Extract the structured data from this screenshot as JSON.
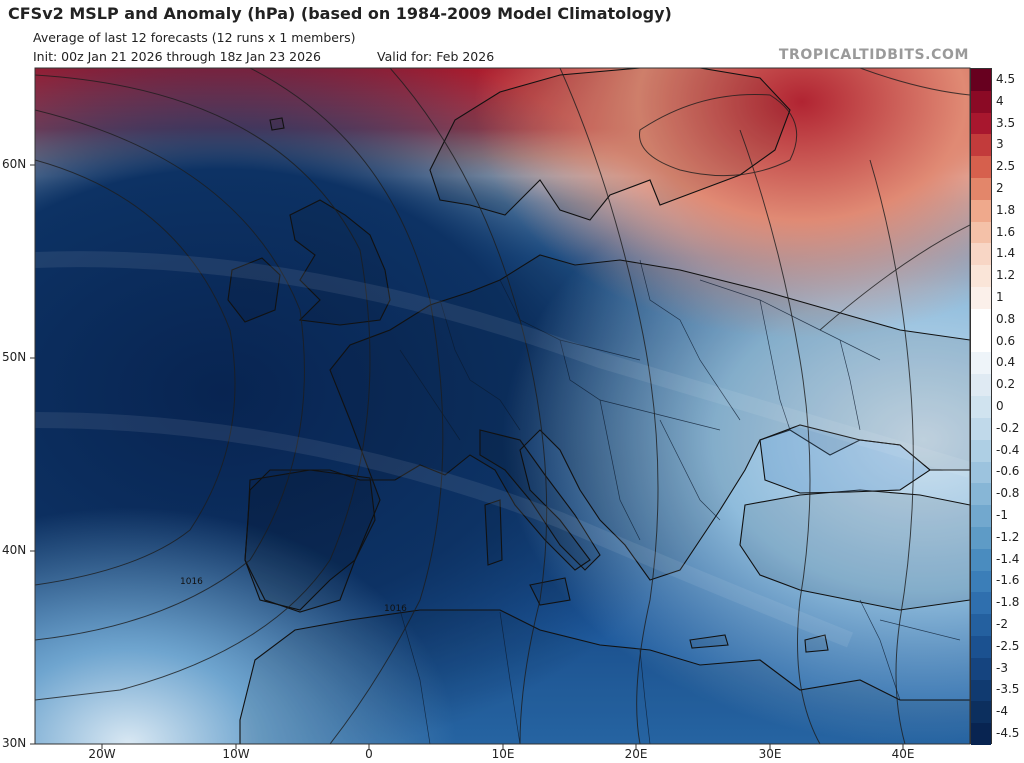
{
  "header": {
    "title": "CFSv2 MSLP and Anomaly (hPa) (based on 1984-2009 Model Climatology)",
    "subtitle": "Average of last 12 forecasts (12 runs x 1 members)",
    "init": "Init: 00z Jan 21 2026 through 18z Jan 23 2026",
    "valid": "Valid for: Feb 2026",
    "brand": "TROPICALTIDBITS.COM"
  },
  "map": {
    "lat_labels": [
      "60N",
      "50N",
      "40N",
      "30N"
    ],
    "lon_labels": [
      "20W",
      "10W",
      "0",
      "10E",
      "20E",
      "30E",
      "40E"
    ],
    "contour_labels": [
      "1016",
      "1016"
    ],
    "extent": {
      "lon_min": -25,
      "lon_max": 45,
      "lat_min": 30,
      "lat_max": 65
    }
  },
  "colorbar": {
    "labels": [
      "4.5",
      "4",
      "3.5",
      "3",
      "2.5",
      "2",
      "1.8",
      "1.6",
      "1.4",
      "1.2",
      "1",
      "0.8",
      "0.6",
      "0.4",
      "0.2",
      "0",
      "-0.2",
      "-0.4",
      "-0.6",
      "-0.8",
      "-1",
      "-1.2",
      "-1.4",
      "-1.6",
      "-1.8",
      "-2",
      "-2.5",
      "-3",
      "-3.5",
      "-4",
      "-4.5"
    ],
    "colors": [
      "#67001f",
      "#8b0a25",
      "#a8172e",
      "#c23b3b",
      "#d6604d",
      "#e3866a",
      "#efa98c",
      "#f4c1a8",
      "#f8d6c5",
      "#fae5d8",
      "#fbf0ea",
      "#ffffff",
      "#ffffff",
      "#eef4f9",
      "#dfeaf3",
      "#d0e3ef",
      "#c0d9ea",
      "#aecfe4",
      "#9cc3de",
      "#87b6d6",
      "#72a8ce",
      "#5e9bc6",
      "#4a8cbf",
      "#3b7eb8",
      "#2f6fae",
      "#24609f",
      "#1b5190",
      "#15447f",
      "#103a70",
      "#0c2f5e",
      "#082451"
    ]
  }
}
